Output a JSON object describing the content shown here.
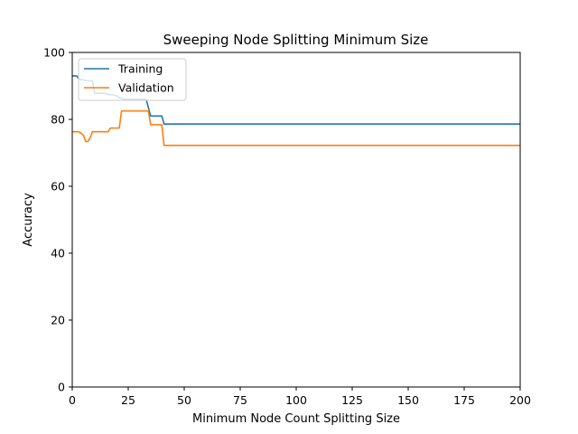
{
  "chart_data": {
    "type": "line",
    "title": "Sweeping Node Splitting Minimum Size",
    "xlabel": "Minimum Node Count Splitting Size",
    "ylabel": "Accuracy",
    "xlim": [
      0,
      200
    ],
    "ylim": [
      0,
      100
    ],
    "xticks": [
      "0",
      "25",
      "50",
      "75",
      "100",
      "125",
      "150",
      "175",
      "200"
    ],
    "yticks": [
      "0",
      "20",
      "40",
      "60",
      "80",
      "100"
    ],
    "grid": false,
    "legend_position": "top-left",
    "series": [
      {
        "name": "Training",
        "color": "#1f77b4",
        "x": [
          0,
          2,
          3,
          7,
          9,
          10,
          15,
          16,
          18,
          20,
          21,
          23,
          25,
          30,
          33,
          35,
          40,
          41,
          200
        ],
        "y": [
          93.0,
          93.0,
          92.0,
          91.5,
          91.5,
          87.8,
          87.8,
          87.4,
          87.4,
          87.0,
          86.5,
          86.0,
          86.0,
          86.0,
          86.0,
          81.0,
          81.0,
          78.6,
          78.6
        ]
      },
      {
        "name": "Validation",
        "color": "#ff7f0e",
        "x": [
          0,
          3,
          4,
          5,
          6,
          7,
          8,
          9,
          10,
          15,
          16,
          17,
          20,
          21,
          22,
          25,
          30,
          33,
          34,
          35,
          40,
          41,
          200
        ],
        "y": [
          76.3,
          76.3,
          75.8,
          75.2,
          73.4,
          73.4,
          74.5,
          76.3,
          76.3,
          76.3,
          76.3,
          77.4,
          77.4,
          77.4,
          82.5,
          82.5,
          82.5,
          82.5,
          82.5,
          78.4,
          78.4,
          72.2,
          72.2
        ]
      }
    ]
  }
}
